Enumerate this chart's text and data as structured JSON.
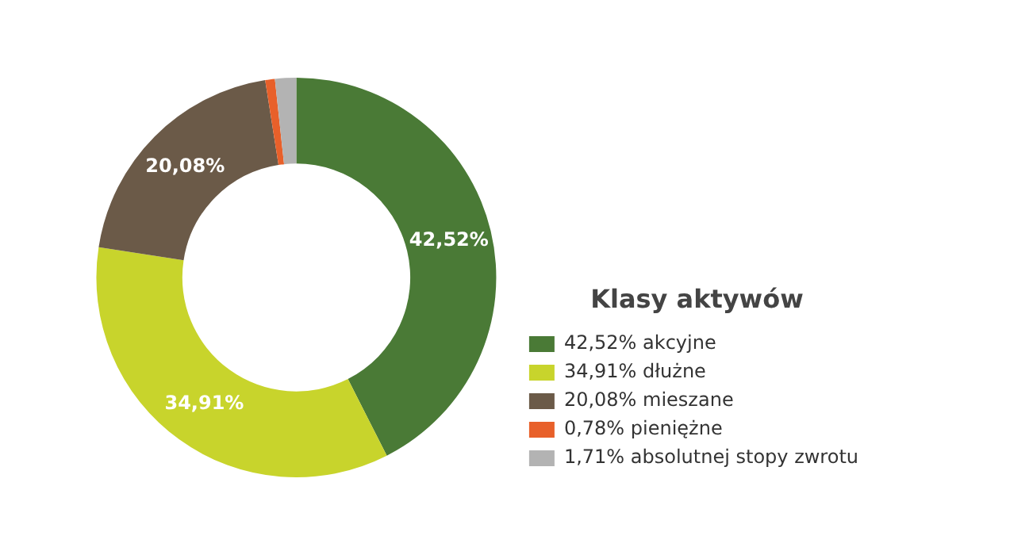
{
  "chart_data": {
    "type": "donut",
    "legend_title": "Klasy aktywów",
    "legend": "right",
    "categories": [
      "akcyjne",
      "dłużne",
      "mieszane",
      "pieniężne",
      "absolutnej stopy zwrotu"
    ],
    "values": [
      42.52,
      34.91,
      20.08,
      0.78,
      1.71
    ],
    "colors": [
      "#4a7a36",
      "#c8d42c",
      "#6b5a48",
      "#e8602a",
      "#b3b3b3"
    ],
    "value_labels": [
      "42,52%",
      "34,91%",
      "20,08%",
      "0,78%",
      "1,71%"
    ]
  }
}
